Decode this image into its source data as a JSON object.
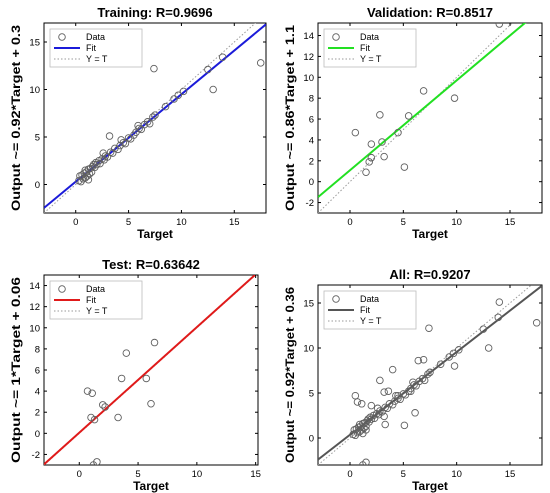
{
  "figure": {
    "background": "#ffffff",
    "legend_labels": [
      "Data",
      "Fit",
      "Y = T"
    ],
    "legend_position": "top-left",
    "marker": "open-circle",
    "marker_color": "#606060",
    "identity_line_color": "#9a9a9a",
    "identity_line_style": "dotted"
  },
  "chart_data": [
    {
      "type": "scatter",
      "title": "Training: R=0.9696",
      "xlabel": "Target",
      "ylabel": "Output ~= 0.92*Target + 0.3",
      "xlim": [
        -3,
        18
      ],
      "ylim": [
        -3,
        17
      ],
      "xticks": [
        0,
        5,
        10,
        15
      ],
      "yticks": [
        0,
        5,
        10,
        15
      ],
      "fit": {
        "slope": 0.92,
        "intercept": 0.3,
        "color": "#1b1bd9"
      },
      "points": [
        [
          0.3,
          0.4
        ],
        [
          0.5,
          0.3
        ],
        [
          0.6,
          1.0
        ],
        [
          0.7,
          0.6
        ],
        [
          0.8,
          1.2
        ],
        [
          0.9,
          0.7
        ],
        [
          1.0,
          1.3
        ],
        [
          1.1,
          0.9
        ],
        [
          1.2,
          1.6
        ],
        [
          1.3,
          1.1
        ],
        [
          1.4,
          1.7
        ],
        [
          1.5,
          1.3
        ],
        [
          1.6,
          1.9
        ],
        [
          1.7,
          2.1
        ],
        [
          1.8,
          1.8
        ],
        [
          1.9,
          2.3
        ],
        [
          2.0,
          2.1
        ],
        [
          2.2,
          2.5
        ],
        [
          2.3,
          2.2
        ],
        [
          2.5,
          2.7
        ],
        [
          2.7,
          2.6
        ],
        [
          2.8,
          3.0
        ],
        [
          3.0,
          2.9
        ],
        [
          3.2,
          5.1
        ],
        [
          3.3,
          3.4
        ],
        [
          3.5,
          3.3
        ],
        [
          3.7,
          3.8
        ],
        [
          4.0,
          3.7
        ],
        [
          4.2,
          4.1
        ],
        [
          4.5,
          4.4
        ],
        [
          4.7,
          4.3
        ],
        [
          5.0,
          4.9
        ],
        [
          5.2,
          4.8
        ],
        [
          5.5,
          5.2
        ],
        [
          5.7,
          5.5
        ],
        [
          6.0,
          5.9
        ],
        [
          6.2,
          5.8
        ],
        [
          6.5,
          6.3
        ],
        [
          6.8,
          6.6
        ],
        [
          7.0,
          6.4
        ],
        [
          7.3,
          7.1
        ],
        [
          7.5,
          7.3
        ],
        [
          7.4,
          12.2
        ],
        [
          8.5,
          8.2
        ],
        [
          9.3,
          9.0
        ],
        [
          9.7,
          9.4
        ],
        [
          10.2,
          9.8
        ],
        [
          12.5,
          12.1
        ],
        [
          13.0,
          10.0
        ],
        [
          13.9,
          13.4
        ],
        [
          17.5,
          12.8
        ],
        [
          0.4,
          0.9
        ],
        [
          0.9,
          1.5
        ],
        [
          1.2,
          0.5
        ],
        [
          2.6,
          3.3
        ],
        [
          4.3,
          4.7
        ],
        [
          5.9,
          6.2
        ]
      ]
    },
    {
      "type": "scatter",
      "title": "Validation: R=0.8517",
      "xlabel": "Target",
      "ylabel": "Output ~= 0.86*Target + 1.1",
      "xlim": [
        -3,
        18
      ],
      "ylim": [
        -3,
        15.2
      ],
      "xticks": [
        0,
        5,
        10,
        15
      ],
      "yticks": [
        -2,
        0,
        2,
        4,
        6,
        8,
        10,
        12,
        14
      ],
      "fit": {
        "slope": 0.86,
        "intercept": 1.1,
        "color": "#22e022"
      },
      "points": [
        [
          0.5,
          4.7
        ],
        [
          1.5,
          0.9
        ],
        [
          1.8,
          1.9
        ],
        [
          2.0,
          3.6
        ],
        [
          2.0,
          2.3
        ],
        [
          2.8,
          6.4
        ],
        [
          3.0,
          3.8
        ],
        [
          3.2,
          2.4
        ],
        [
          4.5,
          4.7
        ],
        [
          5.1,
          1.4
        ],
        [
          5.5,
          6.3
        ],
        [
          6.9,
          8.7
        ],
        [
          9.8,
          8.0
        ],
        [
          14.0,
          15.1
        ]
      ]
    },
    {
      "type": "scatter",
      "title": "Test: R=0.63642",
      "xlabel": "Target",
      "ylabel": "Output ~= 1*Target + 0.06",
      "xlim": [
        -3,
        15.2
      ],
      "ylim": [
        -3,
        15
      ],
      "xticks": [
        0,
        5,
        10,
        15
      ],
      "yticks": [
        -2,
        0,
        2,
        4,
        6,
        8,
        10,
        12,
        14
      ],
      "fit": {
        "slope": 1.0,
        "intercept": 0.06,
        "color": "#e01a1a"
      },
      "points": [
        [
          0.7,
          4.0
        ],
        [
          1.1,
          3.8
        ],
        [
          1.0,
          1.5
        ],
        [
          1.3,
          1.3
        ],
        [
          1.5,
          -2.7
        ],
        [
          1.2,
          -3.0
        ],
        [
          2.0,
          2.7
        ],
        [
          2.2,
          2.5
        ],
        [
          3.3,
          1.5
        ],
        [
          3.6,
          5.2
        ],
        [
          4.0,
          7.6
        ],
        [
          5.7,
          5.2
        ],
        [
          6.1,
          2.8
        ],
        [
          6.4,
          8.6
        ]
      ]
    },
    {
      "type": "scatter",
      "title": "All: R=0.9207",
      "xlabel": "Target",
      "ylabel": "Output ~= 0.92*Target + 0.36",
      "xlim": [
        -3,
        18
      ],
      "ylim": [
        -3,
        17
      ],
      "xticks": [
        0,
        5,
        10,
        15
      ],
      "yticks": [
        0,
        5,
        10,
        15
      ],
      "fit": {
        "slope": 0.92,
        "intercept": 0.36,
        "color": "#555555"
      },
      "points": [
        [
          0.3,
          0.4
        ],
        [
          0.5,
          0.3
        ],
        [
          0.6,
          1.0
        ],
        [
          0.7,
          0.6
        ],
        [
          0.8,
          1.2
        ],
        [
          0.9,
          0.7
        ],
        [
          1.0,
          1.3
        ],
        [
          1.1,
          0.9
        ],
        [
          1.2,
          1.6
        ],
        [
          1.3,
          1.1
        ],
        [
          1.4,
          1.7
        ],
        [
          1.5,
          1.3
        ],
        [
          1.6,
          1.9
        ],
        [
          1.7,
          2.1
        ],
        [
          1.8,
          1.8
        ],
        [
          1.9,
          2.3
        ],
        [
          2.0,
          2.1
        ],
        [
          2.2,
          2.5
        ],
        [
          2.3,
          2.2
        ],
        [
          2.5,
          2.7
        ],
        [
          2.7,
          2.6
        ],
        [
          2.8,
          3.0
        ],
        [
          3.0,
          2.9
        ],
        [
          3.2,
          5.1
        ],
        [
          3.3,
          3.4
        ],
        [
          3.5,
          3.3
        ],
        [
          3.7,
          3.8
        ],
        [
          4.0,
          3.7
        ],
        [
          4.2,
          4.1
        ],
        [
          4.5,
          4.4
        ],
        [
          4.7,
          4.3
        ],
        [
          5.0,
          4.9
        ],
        [
          5.2,
          4.8
        ],
        [
          5.5,
          5.2
        ],
        [
          5.7,
          5.5
        ],
        [
          6.0,
          5.9
        ],
        [
          6.2,
          5.8
        ],
        [
          6.5,
          6.3
        ],
        [
          6.8,
          6.6
        ],
        [
          7.0,
          6.4
        ],
        [
          7.3,
          7.1
        ],
        [
          7.5,
          7.3
        ],
        [
          7.4,
          12.2
        ],
        [
          8.5,
          8.2
        ],
        [
          9.3,
          9.0
        ],
        [
          9.7,
          9.4
        ],
        [
          10.2,
          9.8
        ],
        [
          12.5,
          12.1
        ],
        [
          13.0,
          10.0
        ],
        [
          13.9,
          13.4
        ],
        [
          17.5,
          12.8
        ],
        [
          0.5,
          4.7
        ],
        [
          1.5,
          0.9
        ],
        [
          2.0,
          3.6
        ],
        [
          2.8,
          6.4
        ],
        [
          3.2,
          2.4
        ],
        [
          4.5,
          4.7
        ],
        [
          5.1,
          1.4
        ],
        [
          6.9,
          8.7
        ],
        [
          9.8,
          8.0
        ],
        [
          14.0,
          15.1
        ],
        [
          0.7,
          4.0
        ],
        [
          1.1,
          3.8
        ],
        [
          1.5,
          -2.7
        ],
        [
          1.2,
          -3.0
        ],
        [
          3.3,
          1.5
        ],
        [
          3.6,
          5.2
        ],
        [
          4.0,
          7.6
        ],
        [
          5.7,
          5.2
        ],
        [
          6.1,
          2.8
        ],
        [
          6.4,
          8.6
        ],
        [
          0.4,
          0.9
        ],
        [
          0.9,
          1.5
        ],
        [
          1.2,
          0.5
        ],
        [
          2.6,
          3.3
        ],
        [
          4.3,
          4.7
        ],
        [
          5.9,
          6.2
        ]
      ]
    }
  ]
}
